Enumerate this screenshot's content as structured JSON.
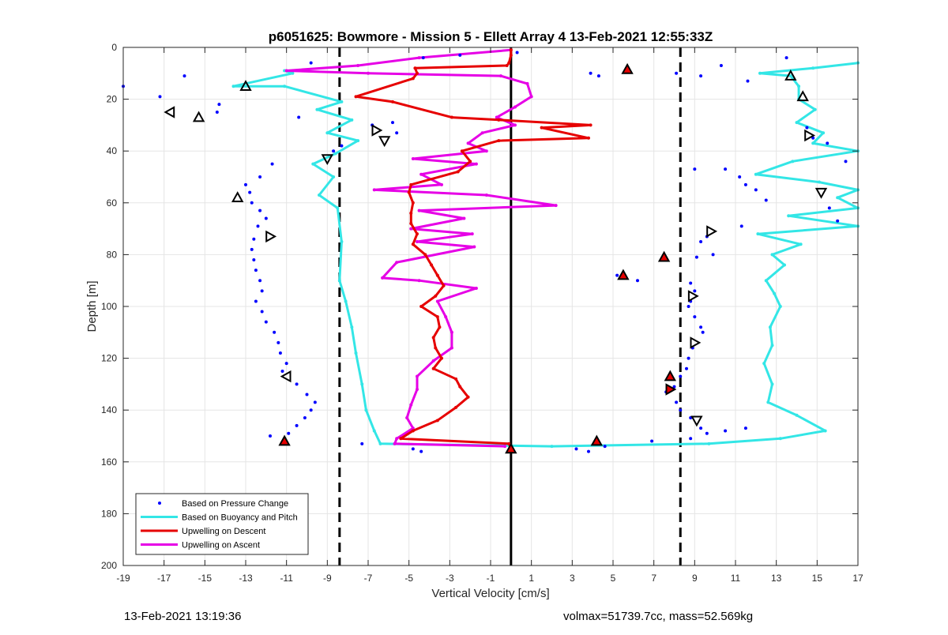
{
  "chart_data": {
    "type": "scatter",
    "title": "p6051625: Bowmore - Mission 5 - Ellett Array 4 13-Feb-2021 12:55:33Z",
    "xlabel": "Vertical Velocity [cm/s]",
    "ylabel": "Depth [m]",
    "xlim": [
      -19,
      17
    ],
    "ylim": [
      0,
      200
    ],
    "y_reversed": true,
    "grid": true,
    "x_ticks": [
      "-19",
      "-17",
      "-15",
      "-13",
      "-11",
      "-9",
      "-7",
      "-5",
      "-3",
      "-1",
      "1",
      "3",
      "5",
      "7",
      "9",
      "11",
      "13",
      "15",
      "17"
    ],
    "y_ticks": [
      "0",
      "20",
      "40",
      "60",
      "80",
      "100",
      "120",
      "140",
      "160",
      "180",
      "200"
    ],
    "legend_position": "bottom-left",
    "legend": [
      {
        "label": "Based on Pressure Change",
        "color": "#0000ff",
        "kind": "dot"
      },
      {
        "label": "Based on Buoyancy and Pitch",
        "color": "#33e6e6",
        "kind": "line"
      },
      {
        "label": "Upwelling on Descent",
        "color": "#e60000",
        "kind": "line"
      },
      {
        "label": "Upwelling on Ascent",
        "color": "#e600e6",
        "kind": "line"
      }
    ],
    "vertical_lines": [
      {
        "x": -8.4,
        "style": "dashed",
        "color": "#000000"
      },
      {
        "x": 0,
        "style": "solid",
        "color": "#000000"
      },
      {
        "x": 8.3,
        "style": "dashed",
        "color": "#000000"
      }
    ],
    "series": [
      {
        "name": "Upwelling on Descent",
        "color": "#e60000",
        "points": [
          [
            0,
            1
          ],
          [
            0,
            3
          ],
          [
            -0.1,
            6
          ],
          [
            -0.2,
            7
          ],
          [
            -4.7,
            8
          ],
          [
            -4.6,
            10
          ],
          [
            -4.8,
            12
          ],
          [
            -7.6,
            19
          ],
          [
            -5.8,
            21
          ],
          [
            -2.9,
            27
          ],
          [
            -0.6,
            28
          ],
          [
            3.9,
            30
          ],
          [
            1.5,
            31
          ],
          [
            3.8,
            35
          ],
          [
            -0.6,
            36
          ],
          [
            -2.4,
            40
          ],
          [
            -2.0,
            44
          ],
          [
            -2.6,
            48
          ],
          [
            -4.9,
            53
          ],
          [
            -5.0,
            56
          ],
          [
            -4.8,
            60
          ],
          [
            -4.9,
            64
          ],
          [
            -4.9,
            68
          ],
          [
            -4.6,
            72
          ],
          [
            -4.8,
            76
          ],
          [
            -4.2,
            80
          ],
          [
            -3.9,
            84
          ],
          [
            -3.6,
            88
          ],
          [
            -3.3,
            92
          ],
          [
            -3.7,
            96
          ],
          [
            -4.4,
            100
          ],
          [
            -3.6,
            104
          ],
          [
            -3.5,
            108
          ],
          [
            -3.8,
            112
          ],
          [
            -3.7,
            116
          ],
          [
            -3.4,
            120
          ],
          [
            -3.8,
            124
          ],
          [
            -2.7,
            128
          ],
          [
            -2.5,
            131
          ],
          [
            -2.1,
            135
          ],
          [
            -2.7,
            139
          ],
          [
            -3.6,
            144
          ],
          [
            -4.8,
            148
          ],
          [
            -5.4,
            151
          ],
          [
            -0.1,
            153
          ],
          [
            0,
            155
          ]
        ]
      },
      {
        "name": "Upwelling on Ascent",
        "color": "#e600e6",
        "points": [
          [
            0,
            1
          ],
          [
            -4.5,
            4
          ],
          [
            -7.5,
            7
          ],
          [
            -11.0,
            9
          ],
          [
            -7.0,
            10
          ],
          [
            -0.5,
            11
          ],
          [
            0.8,
            14
          ],
          [
            1.0,
            19
          ],
          [
            0.2,
            23
          ],
          [
            -0.7,
            27
          ],
          [
            0.2,
            30
          ],
          [
            -1.4,
            33
          ],
          [
            -2.1,
            37
          ],
          [
            -1.2,
            40
          ],
          [
            -4.8,
            43
          ],
          [
            -1.7,
            45
          ],
          [
            -4.4,
            49
          ],
          [
            -3.4,
            53
          ],
          [
            -6.7,
            55
          ],
          [
            -1.2,
            57
          ],
          [
            2.2,
            61
          ],
          [
            -4.5,
            63
          ],
          [
            -2.3,
            66
          ],
          [
            -4.9,
            70
          ],
          [
            -1.9,
            72
          ],
          [
            -4.6,
            75
          ],
          [
            -1.8,
            77
          ],
          [
            -5.6,
            83
          ],
          [
            -6.3,
            89
          ],
          [
            -4.5,
            90
          ],
          [
            -1.7,
            93
          ],
          [
            -3.6,
            98
          ],
          [
            -3.2,
            104
          ],
          [
            -2.9,
            110
          ],
          [
            -2.9,
            116
          ],
          [
            -3.8,
            121
          ],
          [
            -4.6,
            127
          ],
          [
            -4.6,
            132
          ],
          [
            -4.9,
            138
          ],
          [
            -5.1,
            143
          ],
          [
            -4.8,
            147
          ],
          [
            -5.6,
            151
          ],
          [
            -5.7,
            153
          ],
          [
            -0.3,
            154
          ]
        ]
      },
      {
        "name": "Based on Buoyancy and Pitch",
        "color": "#33e6e6",
        "points": [
          [
            17,
            6
          ],
          [
            14.8,
            8
          ],
          [
            12.2,
            10
          ],
          [
            13.7,
            11
          ],
          [
            14.1,
            15
          ],
          [
            14.1,
            20
          ],
          [
            14.9,
            24
          ],
          [
            14.0,
            29
          ],
          [
            15.3,
            33
          ],
          [
            14.8,
            37
          ],
          [
            17,
            40
          ],
          [
            13.8,
            44
          ],
          [
            12.0,
            49
          ],
          [
            15.1,
            52
          ],
          [
            17,
            55
          ],
          [
            16.0,
            58
          ],
          [
            17,
            62
          ],
          [
            13.6,
            65
          ],
          [
            17,
            69
          ],
          [
            12.1,
            72
          ],
          [
            14.2,
            76
          ],
          [
            12.8,
            80
          ],
          [
            13.4,
            84
          ],
          [
            12.5,
            90
          ],
          [
            12.9,
            95
          ],
          [
            13.2,
            100
          ],
          [
            12.7,
            108
          ],
          [
            12.8,
            115
          ],
          [
            12.4,
            122
          ],
          [
            12.8,
            130
          ],
          [
            12.6,
            137
          ],
          [
            14.0,
            142
          ],
          [
            15.4,
            148
          ],
          [
            13.2,
            151
          ],
          [
            9.7,
            153
          ],
          [
            2.0,
            154
          ],
          [
            -6.4,
            153
          ],
          [
            -6.7,
            148
          ],
          [
            -7.1,
            140
          ],
          [
            -7.3,
            130
          ],
          [
            -7.6,
            118
          ],
          [
            -7.8,
            108
          ],
          [
            -8.1,
            98
          ],
          [
            -8.4,
            90
          ],
          [
            -8.3,
            75
          ],
          [
            -8.5,
            62
          ],
          [
            -9.4,
            57
          ],
          [
            -8.7,
            50
          ],
          [
            -9.7,
            45
          ],
          [
            -8.6,
            41
          ],
          [
            -7.5,
            36
          ],
          [
            -9.0,
            33
          ],
          [
            -7.8,
            28
          ],
          [
            -9.5,
            24
          ],
          [
            -8.3,
            21
          ],
          [
            -11.1,
            15
          ],
          [
            -13.6,
            15
          ],
          [
            -10.7,
            10
          ],
          [
            -11.1,
            9
          ]
        ]
      },
      {
        "name": "Based on Pressure Change",
        "color": "#0000ff",
        "kind": "dots",
        "points": [
          [
            -19,
            15
          ],
          [
            -17.2,
            19
          ],
          [
            -16,
            11
          ],
          [
            -14.3,
            22
          ],
          [
            -14.4,
            25
          ],
          [
            -9.8,
            6
          ],
          [
            -10.4,
            27
          ],
          [
            -6.8,
            30
          ],
          [
            -5.8,
            29
          ],
          [
            -5.6,
            33
          ],
          [
            -11.7,
            45
          ],
          [
            -12.3,
            50
          ],
          [
            -13.0,
            53
          ],
          [
            -12.8,
            56
          ],
          [
            -12.7,
            60
          ],
          [
            -12.3,
            63
          ],
          [
            -12.0,
            66
          ],
          [
            -12.4,
            69
          ],
          [
            -12.6,
            74
          ],
          [
            -12.7,
            78
          ],
          [
            -12.6,
            82
          ],
          [
            -12.5,
            86
          ],
          [
            -12.3,
            90
          ],
          [
            -12.2,
            94
          ],
          [
            -12.5,
            98
          ],
          [
            -12.2,
            102
          ],
          [
            -12.0,
            106
          ],
          [
            -11.6,
            110
          ],
          [
            -11.4,
            114
          ],
          [
            -11.3,
            118
          ],
          [
            -11.0,
            122
          ],
          [
            -11.2,
            125
          ],
          [
            -10.5,
            130
          ],
          [
            -10.0,
            134
          ],
          [
            -9.6,
            137
          ],
          [
            -9.8,
            140
          ],
          [
            -10.1,
            143
          ],
          [
            -10.5,
            146
          ],
          [
            -10.9,
            149
          ],
          [
            -11.8,
            150
          ],
          [
            -8.7,
            40
          ],
          [
            -8.3,
            38
          ],
          [
            -7.3,
            153
          ],
          [
            -4.8,
            155
          ],
          [
            -4.4,
            156
          ],
          [
            -4.3,
            4
          ],
          [
            -2.5,
            3
          ],
          [
            0.3,
            2
          ],
          [
            3.9,
            10
          ],
          [
            4.3,
            11
          ],
          [
            8.1,
            10
          ],
          [
            9.3,
            11
          ],
          [
            10.3,
            7
          ],
          [
            11.6,
            13
          ],
          [
            13.5,
            4
          ],
          [
            14.5,
            31
          ],
          [
            14.8,
            35
          ],
          [
            15.5,
            37
          ],
          [
            16.4,
            44
          ],
          [
            15.6,
            62
          ],
          [
            16.0,
            67
          ],
          [
            9.0,
            47
          ],
          [
            10.5,
            47
          ],
          [
            11.2,
            50
          ],
          [
            11.5,
            53
          ],
          [
            12.0,
            55
          ],
          [
            12.5,
            59
          ],
          [
            11.3,
            69
          ],
          [
            9.6,
            73
          ],
          [
            9.3,
            75
          ],
          [
            9.9,
            80
          ],
          [
            9.1,
            81
          ],
          [
            5.2,
            88
          ],
          [
            6.2,
            90
          ],
          [
            8.8,
            91
          ],
          [
            9.0,
            94
          ],
          [
            8.8,
            98
          ],
          [
            8.7,
            100
          ],
          [
            9.0,
            104
          ],
          [
            9.3,
            108
          ],
          [
            9.4,
            110
          ],
          [
            8.9,
            116
          ],
          [
            8.7,
            120
          ],
          [
            8.6,
            124
          ],
          [
            8.3,
            127
          ],
          [
            8.0,
            131
          ],
          [
            7.6,
            133
          ],
          [
            8.1,
            137
          ],
          [
            8.3,
            140
          ],
          [
            8.8,
            143
          ],
          [
            9.3,
            147
          ],
          [
            9.6,
            149
          ],
          [
            8.8,
            151
          ],
          [
            6.9,
            152
          ],
          [
            4.6,
            154
          ],
          [
            3.2,
            155
          ],
          [
            3.8,
            156
          ],
          [
            10.5,
            148
          ],
          [
            11.5,
            147
          ]
        ]
      },
      {
        "name": "",
        "kind": "markers",
        "points": [
          {
            "x": 5.7,
            "y": 8.5,
            "m": "up",
            "fill": "#e60000"
          },
          {
            "x": 13.7,
            "y": 11,
            "m": "up"
          },
          {
            "x": -13.0,
            "y": 15,
            "m": "up"
          },
          {
            "x": 14.3,
            "y": 19,
            "m": "up"
          },
          {
            "x": -16.7,
            "y": 25,
            "m": "left"
          },
          {
            "x": -15.3,
            "y": 27,
            "m": "up"
          },
          {
            "x": -6.6,
            "y": 32,
            "m": "right"
          },
          {
            "x": 14.6,
            "y": 34,
            "m": "right"
          },
          {
            "x": -6.2,
            "y": 36,
            "m": "down"
          },
          {
            "x": -9.0,
            "y": 43,
            "m": "down"
          },
          {
            "x": 15.2,
            "y": 56,
            "m": "down"
          },
          {
            "x": -13.4,
            "y": 58,
            "m": "up"
          },
          {
            "x": 9.8,
            "y": 71,
            "m": "right"
          },
          {
            "x": -11.8,
            "y": 73,
            "m": "right"
          },
          {
            "x": 7.5,
            "y": 81,
            "m": "up",
            "fill": "#e60000"
          },
          {
            "x": 5.5,
            "y": 88,
            "m": "up",
            "fill": "#e60000"
          },
          {
            "x": 8.9,
            "y": 96,
            "m": "right"
          },
          {
            "x": 9.0,
            "y": 114,
            "m": "right"
          },
          {
            "x": -11.0,
            "y": 127,
            "m": "left"
          },
          {
            "x": 7.8,
            "y": 127,
            "m": "up",
            "fill": "#e60000"
          },
          {
            "x": 7.8,
            "y": 132,
            "m": "right",
            "fill": "#e60000"
          },
          {
            "x": 9.1,
            "y": 144,
            "m": "down"
          },
          {
            "x": -11.1,
            "y": 152,
            "m": "up",
            "fill": "#e60000"
          },
          {
            "x": 4.2,
            "y": 152,
            "m": "up",
            "fill": "#e60000"
          },
          {
            "x": 0,
            "y": 155,
            "m": "up",
            "fill": "#e60000"
          }
        ]
      }
    ]
  },
  "footer": {
    "timestamp": "13-Feb-2021 13:19:36",
    "stats": "volmax=51739.7cc, mass=52.569kg"
  }
}
